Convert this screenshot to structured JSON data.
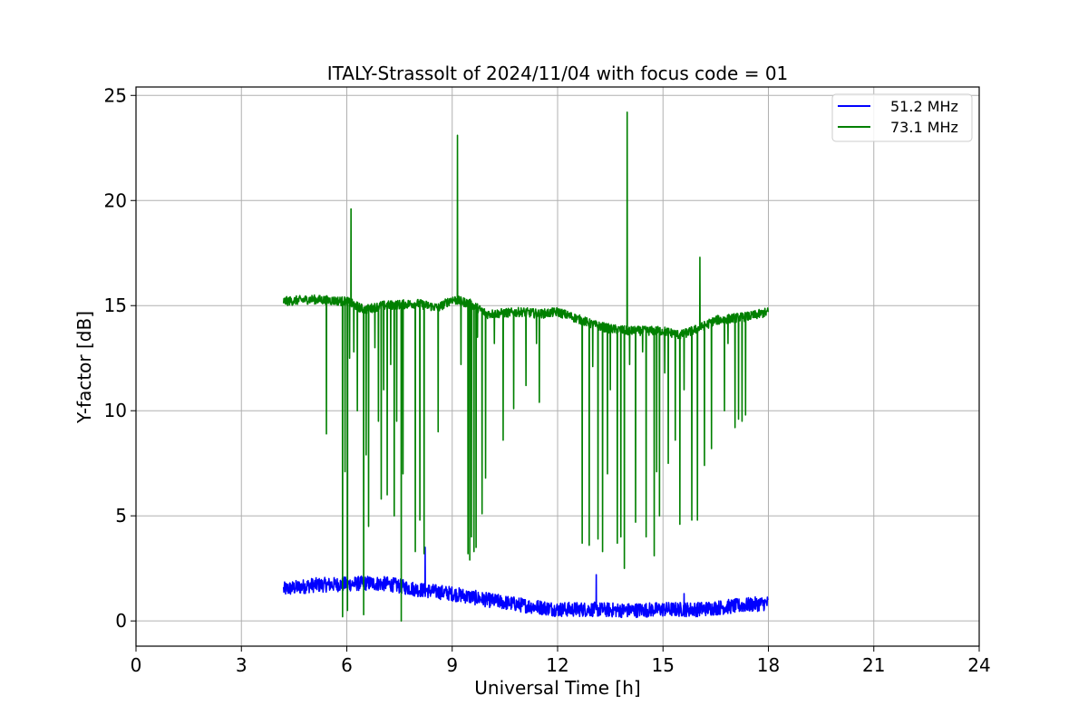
{
  "chart_data": {
    "type": "line",
    "title": "ITALY-Strassolt of 2024/11/04 with focus code = 01",
    "xlabel": "Universal Time [h]",
    "ylabel": "Y-factor [dB]",
    "xlim": [
      0,
      24
    ],
    "ylim": [
      -1.2,
      25.4
    ],
    "xticks": [
      0,
      3,
      6,
      9,
      12,
      15,
      18,
      21,
      24
    ],
    "yticks": [
      0,
      5,
      10,
      15,
      20,
      25
    ],
    "grid": true,
    "legend_position": "top-right",
    "series": [
      {
        "name": "51.2 MHz",
        "color": "#0000ff",
        "baseline": [
          [
            4.2,
            1.5
          ],
          [
            5,
            1.7
          ],
          [
            6,
            1.75
          ],
          [
            6.6,
            1.8
          ],
          [
            7.2,
            1.75
          ],
          [
            8,
            1.5
          ],
          [
            9,
            1.3
          ],
          [
            10,
            1.0
          ],
          [
            11,
            0.75
          ],
          [
            12,
            0.55
          ],
          [
            13,
            0.55
          ],
          [
            14,
            0.5
          ],
          [
            15,
            0.55
          ],
          [
            16,
            0.55
          ],
          [
            17,
            0.7
          ],
          [
            18,
            0.85
          ]
        ],
        "noise": 0.35,
        "spikes": [
          [
            8.23,
            3.5
          ],
          [
            13.1,
            2.2
          ],
          [
            15.6,
            1.3
          ]
        ]
      },
      {
        "name": "73.1 MHz",
        "color": "#008000",
        "baseline": [
          [
            4.2,
            15.2
          ],
          [
            5,
            15.3
          ],
          [
            6,
            15.2
          ],
          [
            6.5,
            14.8
          ],
          [
            7,
            15.0
          ],
          [
            8,
            15.1
          ],
          [
            8.6,
            14.9
          ],
          [
            9,
            15.3
          ],
          [
            9.5,
            15.1
          ],
          [
            10,
            14.6
          ],
          [
            11,
            14.7
          ],
          [
            11.5,
            14.6
          ],
          [
            12,
            14.7
          ],
          [
            12.7,
            14.3
          ],
          [
            13,
            14.1
          ],
          [
            13.5,
            13.9
          ],
          [
            14,
            13.8
          ],
          [
            15,
            13.8
          ],
          [
            15.5,
            13.6
          ],
          [
            16,
            13.9
          ],
          [
            16.5,
            14.3
          ],
          [
            17,
            14.4
          ],
          [
            17.5,
            14.5
          ],
          [
            18,
            14.7
          ]
        ],
        "noise": 0.22,
        "spikes": [
          [
            5.42,
            8.9
          ],
          [
            5.88,
            0.2
          ],
          [
            5.95,
            7.1
          ],
          [
            6.02,
            0.5
          ],
          [
            6.08,
            12.5
          ],
          [
            6.12,
            19.6
          ],
          [
            6.2,
            12.8
          ],
          [
            6.3,
            10.0
          ],
          [
            6.48,
            0.3
          ],
          [
            6.55,
            7.9
          ],
          [
            6.62,
            4.5
          ],
          [
            6.8,
            13.0
          ],
          [
            6.9,
            9.5
          ],
          [
            6.98,
            5.8
          ],
          [
            7.05,
            11.0
          ],
          [
            7.15,
            6.0
          ],
          [
            7.25,
            12.2
          ],
          [
            7.35,
            5.0
          ],
          [
            7.42,
            9.5
          ],
          [
            7.55,
            0.0
          ],
          [
            7.6,
            7.0
          ],
          [
            7.95,
            3.3
          ],
          [
            8.08,
            4.8
          ],
          [
            8.2,
            3.2
          ],
          [
            8.6,
            9.0
          ],
          [
            9.15,
            23.1
          ],
          [
            9.25,
            12.2
          ],
          [
            9.45,
            3.2
          ],
          [
            9.5,
            2.9
          ],
          [
            9.55,
            4.0
          ],
          [
            9.62,
            3.3
          ],
          [
            9.68,
            3.5
          ],
          [
            9.72,
            13.5
          ],
          [
            9.85,
            5.1
          ],
          [
            9.95,
            6.8
          ],
          [
            10.2,
            13.2
          ],
          [
            10.45,
            8.6
          ],
          [
            10.75,
            10.1
          ],
          [
            11.1,
            11.2
          ],
          [
            11.4,
            13.2
          ],
          [
            11.48,
            10.4
          ],
          [
            12.7,
            3.7
          ],
          [
            12.9,
            3.6
          ],
          [
            13.0,
            12.1
          ],
          [
            13.15,
            3.9
          ],
          [
            13.28,
            3.3
          ],
          [
            13.42,
            7.0
          ],
          [
            13.5,
            11.0
          ],
          [
            13.7,
            3.7
          ],
          [
            13.8,
            4.0
          ],
          [
            13.9,
            2.5
          ],
          [
            13.98,
            24.2
          ],
          [
            14.05,
            12.2
          ],
          [
            14.22,
            4.7
          ],
          [
            14.42,
            12.8
          ],
          [
            14.52,
            4.0
          ],
          [
            14.75,
            3.1
          ],
          [
            14.82,
            7.1
          ],
          [
            14.9,
            5.0
          ],
          [
            15.05,
            11.8
          ],
          [
            15.15,
            7.5
          ],
          [
            15.35,
            8.6
          ],
          [
            15.48,
            4.6
          ],
          [
            15.6,
            11.0
          ],
          [
            15.82,
            4.8
          ],
          [
            15.98,
            4.8
          ],
          [
            16.05,
            17.3
          ],
          [
            16.18,
            7.4
          ],
          [
            16.38,
            8.2
          ],
          [
            16.75,
            10.0
          ],
          [
            16.85,
            13.2
          ],
          [
            17.05,
            9.2
          ],
          [
            17.15,
            9.6
          ],
          [
            17.25,
            9.5
          ],
          [
            17.35,
            9.8
          ]
        ]
      }
    ]
  }
}
